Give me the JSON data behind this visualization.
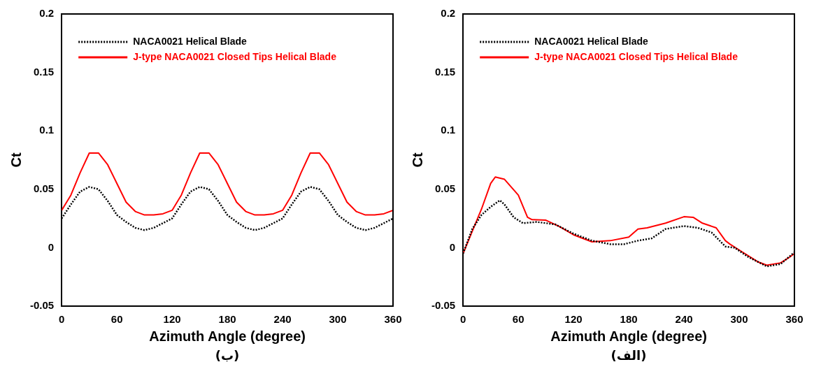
{
  "chart_data": [
    {
      "type": "line",
      "xlabel": "Azimuth Angle (degree)",
      "ylabel": "Ct",
      "annotations": [
        "(ب)"
      ],
      "legend": "top left",
      "xlim": [
        0,
        360
      ],
      "xticks": [
        0,
        60,
        120,
        180,
        240,
        300,
        360
      ],
      "ylim": [
        -0.05,
        0.2
      ],
      "yticks": [
        -0.05,
        0,
        0.05,
        0.1,
        0.15,
        0.2
      ],
      "grid": false,
      "marker": "none",
      "x": [
        0,
        10,
        20,
        30,
        40,
        50,
        60,
        70,
        80,
        90,
        100,
        110,
        120,
        130,
        140,
        150,
        160,
        170,
        180,
        190,
        200,
        210,
        220,
        230,
        240,
        250,
        260,
        270,
        280,
        290,
        300,
        310,
        320,
        330,
        340,
        350,
        360
      ],
      "series": [
        {
          "name": "NACA0021 Helical Blade",
          "color": "#000000",
          "line_style": "dotted",
          "values": [
            0.025,
            0.037,
            0.048,
            0.052,
            0.05,
            0.04,
            0.028,
            0.022,
            0.017,
            0.015,
            0.017,
            0.021,
            0.025,
            0.037,
            0.048,
            0.052,
            0.05,
            0.04,
            0.028,
            0.022,
            0.017,
            0.015,
            0.017,
            0.021,
            0.025,
            0.037,
            0.048,
            0.052,
            0.05,
            0.04,
            0.028,
            0.022,
            0.017,
            0.015,
            0.017,
            0.021,
            0.025
          ]
        },
        {
          "name": "J-type NACA0021 Closed Tips Helical Blade",
          "color": "#ff0000",
          "line_style": "solid",
          "values": [
            0.032,
            0.045,
            0.064,
            0.081,
            0.081,
            0.071,
            0.055,
            0.039,
            0.031,
            0.028,
            0.028,
            0.029,
            0.032,
            0.045,
            0.064,
            0.081,
            0.081,
            0.071,
            0.055,
            0.039,
            0.031,
            0.028,
            0.028,
            0.029,
            0.032,
            0.045,
            0.064,
            0.081,
            0.081,
            0.071,
            0.055,
            0.039,
            0.031,
            0.028,
            0.028,
            0.029,
            0.032
          ]
        }
      ]
    },
    {
      "type": "line",
      "xlabel": "Azimuth Angle (degree)",
      "ylabel": "Ct",
      "annotations": [
        "(الف)"
      ],
      "legend": "top left",
      "xlim": [
        0,
        360
      ],
      "xticks": [
        0,
        60,
        120,
        180,
        240,
        300,
        360
      ],
      "ylim": [
        -0.05,
        0.2
      ],
      "yticks": [
        -0.05,
        0,
        0.05,
        0.1,
        0.15,
        0.2
      ],
      "grid": false,
      "marker": "none",
      "series": [
        {
          "name": "NACA0021 Helical Blade",
          "color": "#000000",
          "line_style": "dotted",
          "x": [
            0,
            10,
            20,
            30,
            40,
            45,
            55,
            65,
            80,
            100,
            120,
            140,
            160,
            175,
            190,
            205,
            220,
            240,
            255,
            270,
            285,
            295,
            310,
            330,
            345,
            360
          ],
          "values": [
            -0.005,
            0.016,
            0.028,
            0.035,
            0.0405,
            0.037,
            0.026,
            0.021,
            0.022,
            0.02,
            0.012,
            0.006,
            0.003,
            0.003,
            0.006,
            0.008,
            0.016,
            0.0185,
            0.017,
            0.013,
            0.001,
            0.0,
            -0.008,
            -0.016,
            -0.014,
            -0.004
          ]
        },
        {
          "name": "J-type NACA0021 Closed Tips Helical Blade",
          "color": "#ff0000",
          "line_style": "solid",
          "x": [
            0,
            10,
            20,
            30,
            35,
            45,
            60,
            70,
            75,
            90,
            105,
            120,
            140,
            160,
            180,
            190,
            200,
            220,
            240,
            250,
            260,
            275,
            285,
            290,
            300,
            320,
            330,
            345,
            355,
            360
          ],
          "values": [
            -0.005,
            0.014,
            0.033,
            0.055,
            0.0605,
            0.0585,
            0.045,
            0.026,
            0.024,
            0.0235,
            0.018,
            0.011,
            0.005,
            0.006,
            0.009,
            0.016,
            0.017,
            0.021,
            0.0265,
            0.026,
            0.021,
            0.017,
            0.006,
            0.003,
            -0.002,
            -0.012,
            -0.015,
            -0.013,
            -0.008,
            -0.005
          ]
        }
      ]
    }
  ]
}
